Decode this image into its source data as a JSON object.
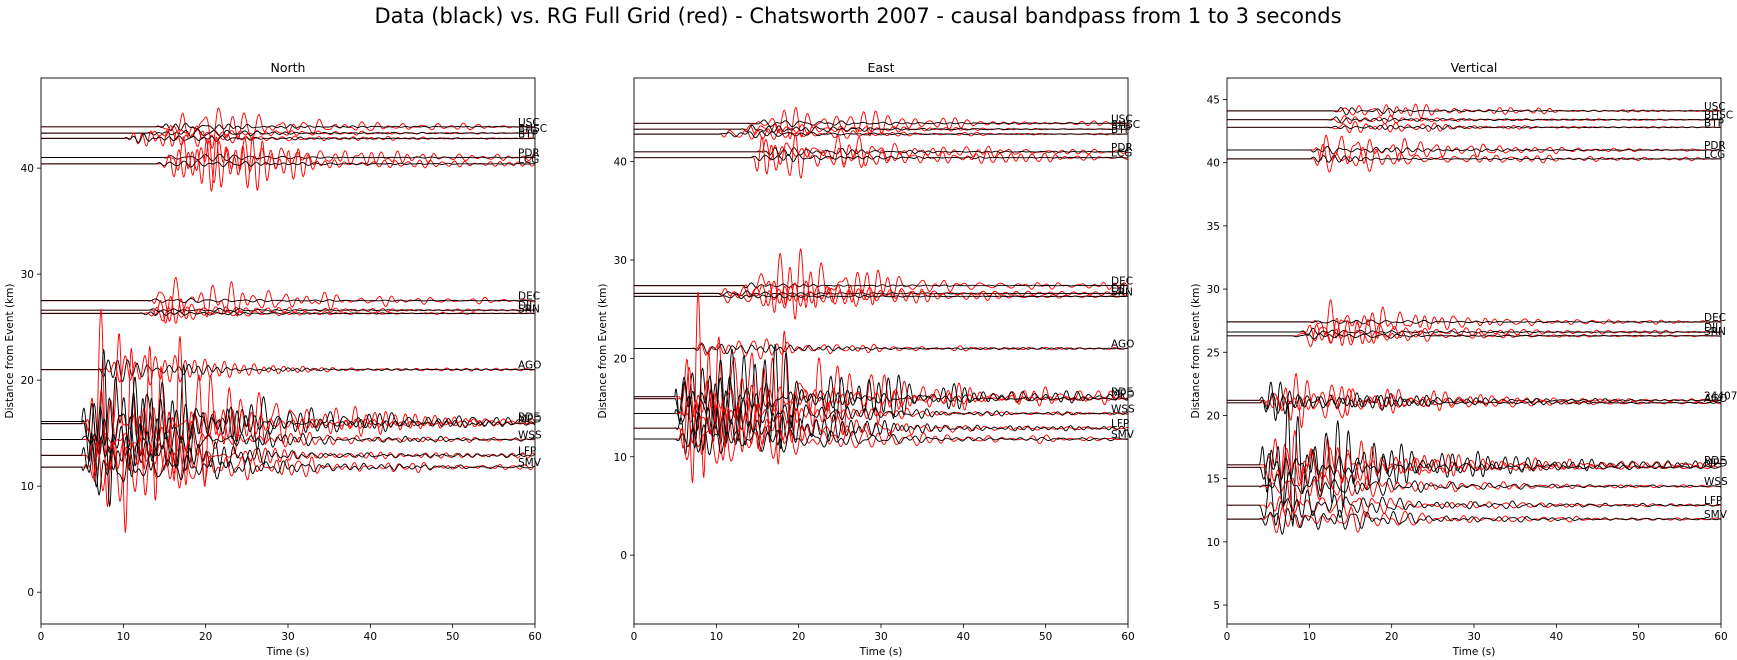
{
  "suptitle": "Data (black) vs. RG Full Grid (red) - Chatsworth 2007 - causal bandpass from 1 to 3 seconds",
  "colors": {
    "data": "#000000",
    "synthetic": "#ff0000",
    "frame": "#000000",
    "background": "#ffffff"
  },
  "chart_data": [
    {
      "type": "line",
      "title": "North",
      "xlabel": "Time (s)",
      "ylabel": "Distance from Event (km)",
      "xlim": [
        0,
        60
      ],
      "ylim": [
        -3,
        48.5
      ],
      "xticks": [
        0,
        10,
        20,
        30,
        40,
        50,
        60
      ],
      "yticks": [
        0,
        10,
        20,
        30,
        40
      ],
      "series": [
        {
          "name": "USC",
          "distance": 43.9,
          "arrival": 14,
          "data_amp": 0.3,
          "syn_amp": 1.6,
          "label_dy": 0
        },
        {
          "name": "BHSC",
          "distance": 43.3,
          "arrival": 13,
          "data_amp": 0.3,
          "syn_amp": 0.5,
          "label_dy": 0
        },
        {
          "name": "BTP",
          "distance": 42.8,
          "arrival": 10,
          "data_amp": 0.3,
          "syn_amp": 0.6,
          "label_dy": 0
        },
        {
          "name": "PDR",
          "distance": 41.0,
          "arrival": 15,
          "data_amp": 0.3,
          "syn_amp": 1.8,
          "label_dy": 0
        },
        {
          "name": "LCG",
          "distance": 40.4,
          "arrival": 14,
          "data_amp": 0.3,
          "syn_amp": 2.6,
          "label_dy": 0
        },
        {
          "name": "DEC",
          "distance": 27.5,
          "arrival": 13,
          "data_amp": 0.2,
          "syn_amp": 1.6,
          "label_dy": 0
        },
        {
          "name": "DJJ",
          "distance": 26.6,
          "arrival": 13,
          "data_amp": 0.2,
          "syn_amp": 0.7,
          "label_dy": 0
        },
        {
          "name": "SRN",
          "distance": 26.3,
          "arrival": 12,
          "data_amp": 0.2,
          "syn_amp": 0.5,
          "label_dy": 0
        },
        {
          "name": "AGO",
          "distance": 21.0,
          "arrival": 7,
          "data_amp": 0.8,
          "syn_amp": 1.5,
          "label_dy": 0
        },
        {
          "name": "RDE",
          "distance": 16.1,
          "arrival": 5,
          "data_amp": 7.5,
          "syn_amp": 7.5,
          "label_dy": 0
        },
        {
          "name": "MPD",
          "distance": 15.9,
          "arrival": 5,
          "data_amp": 2.5,
          "syn_amp": 2.5,
          "label_dy": 0
        },
        {
          "name": "WSS",
          "distance": 14.4,
          "arrival": 5,
          "data_amp": 2.0,
          "syn_amp": 2.0,
          "label_dy": 0
        },
        {
          "name": "LFP",
          "distance": 12.9,
          "arrival": 5,
          "data_amp": 2.5,
          "syn_amp": 2.5,
          "label_dy": 0
        },
        {
          "name": "SMV",
          "distance": 11.8,
          "arrival": 5,
          "data_amp": 2.5,
          "syn_amp": 2.5,
          "label_dy": 0
        }
      ]
    },
    {
      "type": "line",
      "title": "East",
      "xlabel": "Time (s)",
      "ylabel": "Distance from Event (km)",
      "xlim": [
        0,
        60
      ],
      "ylim": [
        -7,
        48.5
      ],
      "xticks": [
        0,
        10,
        20,
        30,
        40,
        50,
        60
      ],
      "yticks": [
        0,
        10,
        20,
        30,
        40
      ],
      "series": [
        {
          "name": "USC",
          "distance": 43.9,
          "arrival": 14,
          "data_amp": 0.3,
          "syn_amp": 1.6,
          "label_dy": 0
        },
        {
          "name": "BHSC",
          "distance": 43.3,
          "arrival": 13,
          "data_amp": 0.3,
          "syn_amp": 0.5,
          "label_dy": 0
        },
        {
          "name": "BTP",
          "distance": 42.8,
          "arrival": 10,
          "data_amp": 0.3,
          "syn_amp": 0.6,
          "label_dy": 0
        },
        {
          "name": "PDR",
          "distance": 41.0,
          "arrival": 15,
          "data_amp": 0.3,
          "syn_amp": 1.6,
          "label_dy": 0
        },
        {
          "name": "LCG",
          "distance": 40.4,
          "arrival": 14,
          "data_amp": 0.3,
          "syn_amp": 2.0,
          "label_dy": 0
        },
        {
          "name": "DEC",
          "distance": 27.4,
          "arrival": 13,
          "data_amp": 0.2,
          "syn_amp": 2.4,
          "label_dy": 0
        },
        {
          "name": "DJJ",
          "distance": 26.6,
          "arrival": 10,
          "data_amp": 0.2,
          "syn_amp": 2.0,
          "label_dy": 0
        },
        {
          "name": "SRN",
          "distance": 26.3,
          "arrival": 10,
          "data_amp": 0.2,
          "syn_amp": 1.5,
          "label_dy": 0
        },
        {
          "name": "AGO",
          "distance": 21.0,
          "arrival": 7,
          "data_amp": 0.8,
          "syn_amp": 1.2,
          "label_dy": 0
        },
        {
          "name": "RDE",
          "distance": 16.1,
          "arrival": 5,
          "data_amp": 7.5,
          "syn_amp": 7.5,
          "label_dy": 0
        },
        {
          "name": "MPD",
          "distance": 15.9,
          "arrival": 5,
          "data_amp": 2.5,
          "syn_amp": 2.5,
          "label_dy": 0
        },
        {
          "name": "WSS",
          "distance": 14.4,
          "arrival": 5,
          "data_amp": 2.0,
          "syn_amp": 2.0,
          "label_dy": 0
        },
        {
          "name": "LFP",
          "distance": 12.9,
          "arrival": 5,
          "data_amp": 2.2,
          "syn_amp": 2.2,
          "label_dy": 0
        },
        {
          "name": "SMV",
          "distance": 11.8,
          "arrival": 5,
          "data_amp": 2.2,
          "syn_amp": 2.2,
          "label_dy": 0
        }
      ]
    },
    {
      "type": "line",
      "title": "Vertical",
      "xlabel": "Time (s)",
      "ylabel": "Distance from Event (km)",
      "xlim": [
        0,
        60
      ],
      "ylim": [
        3.5,
        46.7
      ],
      "xticks": [
        0,
        10,
        20,
        30,
        40,
        50,
        60
      ],
      "yticks": [
        5,
        10,
        15,
        20,
        25,
        30,
        35,
        40,
        45
      ],
      "series": [
        {
          "name": "USC",
          "distance": 44.1,
          "arrival": 13,
          "data_amp": 0.2,
          "syn_amp": 0.6,
          "label_dy": 0
        },
        {
          "name": "BHSC",
          "distance": 43.4,
          "arrival": 12,
          "data_amp": 0.2,
          "syn_amp": 0.3,
          "label_dy": 0
        },
        {
          "name": "BTP",
          "distance": 42.8,
          "arrival": 12,
          "data_amp": 0.2,
          "syn_amp": 0.4,
          "label_dy": 0
        },
        {
          "name": "PDR",
          "distance": 41.0,
          "arrival": 10,
          "data_amp": 0.3,
          "syn_amp": 0.9,
          "label_dy": 0
        },
        {
          "name": "LCG",
          "distance": 40.3,
          "arrival": 10,
          "data_amp": 0.3,
          "syn_amp": 0.9,
          "label_dy": 0
        },
        {
          "name": "DEC",
          "distance": 27.4,
          "arrival": 10,
          "data_amp": 0.2,
          "syn_amp": 1.0,
          "label_dy": 0
        },
        {
          "name": "DJJ",
          "distance": 26.6,
          "arrival": 9,
          "data_amp": 0.2,
          "syn_amp": 0.9,
          "label_dy": 0
        },
        {
          "name": "SRN",
          "distance": 26.3,
          "arrival": 8,
          "data_amp": 0.2,
          "syn_amp": 0.6,
          "label_dy": 0
        },
        {
          "name": "24407",
          "distance": 21.2,
          "arrival": 4,
          "data_amp": 1.0,
          "syn_amp": 1.5,
          "label_dy": 0
        },
        {
          "name": "AGO",
          "distance": 21.0,
          "arrival": 4,
          "data_amp": 0.8,
          "syn_amp": 1.2,
          "label_dy": 0
        },
        {
          "name": "RDE",
          "distance": 16.1,
          "arrival": 4,
          "data_amp": 3.5,
          "syn_amp": 3.5,
          "label_dy": 0
        },
        {
          "name": "MPD",
          "distance": 15.9,
          "arrival": 4,
          "data_amp": 1.5,
          "syn_amp": 1.5,
          "label_dy": 0
        },
        {
          "name": "WSS",
          "distance": 14.4,
          "arrival": 4,
          "data_amp": 1.2,
          "syn_amp": 1.2,
          "label_dy": 0
        },
        {
          "name": "LFP",
          "distance": 12.9,
          "arrival": 4,
          "data_amp": 1.2,
          "syn_amp": 1.2,
          "label_dy": 0
        },
        {
          "name": "SMV",
          "distance": 11.8,
          "arrival": 4,
          "data_amp": 1.0,
          "syn_amp": 1.0,
          "label_dy": 0
        }
      ]
    }
  ]
}
